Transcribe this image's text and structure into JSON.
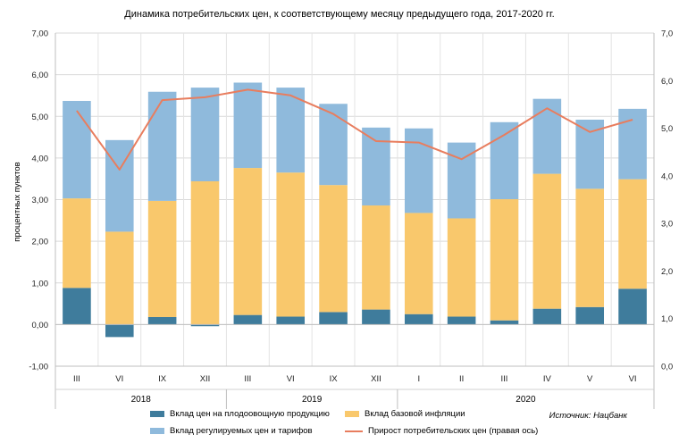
{
  "title": "Динамика потребительских цен, к соответствующему месяцу предыдущего года, 2017-2020 гг.",
  "source": "Источник: Нацбанк",
  "colors": {
    "fruit": "#3f7c9c",
    "core": "#f9c86c",
    "regulated": "#8fbadc",
    "cpi": "#e87d5e"
  },
  "legend": {
    "fruit": "Вклад цен на плодоовощную продукцию",
    "core": "Вклад базовой инфляции",
    "regulated": "Вклад регулируемых цен и тарифов",
    "cpi": "Прирост потребительских цен (правая ось)"
  },
  "chart_data": {
    "type": "bar",
    "stacked": true,
    "categories": [
      "III",
      "VI",
      "IX",
      "XII",
      "III",
      "VI",
      "IX",
      "XII",
      "I",
      "II",
      "III",
      "IV",
      "V",
      "VI"
    ],
    "years": [
      {
        "label": "2018",
        "span": [
          0,
          3
        ]
      },
      {
        "label": "2019",
        "span": [
          4,
          7
        ]
      },
      {
        "label": "2020",
        "span": [
          8,
          13
        ]
      }
    ],
    "ylabel": "процентных пунктов",
    "ylim": [
      -1,
      7
    ],
    "y_ticks": [
      "-1,00",
      "0,00",
      "1,00",
      "2,00",
      "3,00",
      "4,00",
      "5,00",
      "6,00",
      "7,00"
    ],
    "y2lim": [
      0,
      7
    ],
    "y2_ticks": [
      "0,0",
      "1,0",
      "2,0",
      "3,0",
      "4,0",
      "5,0",
      "6,0",
      "7,0"
    ],
    "series": [
      {
        "name": "Вклад цен на плодоовощную продукцию",
        "key": "fruit",
        "values": [
          0.88,
          -0.3,
          0.18,
          -0.04,
          0.23,
          0.19,
          0.3,
          0.36,
          0.25,
          0.19,
          0.1,
          0.38,
          0.42,
          0.86
        ]
      },
      {
        "name": "Вклад базовой инфляции",
        "key": "core",
        "values": [
          2.15,
          2.23,
          2.79,
          3.44,
          3.53,
          3.46,
          3.05,
          2.5,
          2.43,
          2.36,
          2.91,
          3.24,
          2.84,
          2.63
        ]
      },
      {
        "name": "Вклад регулируемых цен и тарифов",
        "key": "regulated",
        "values": [
          2.34,
          2.2,
          2.62,
          2.25,
          2.05,
          2.04,
          1.95,
          1.87,
          2.03,
          1.82,
          1.85,
          1.8,
          1.66,
          1.69
        ]
      },
      {
        "name": "Прирост потребительских цен (правая ось)",
        "key": "cpi",
        "axis": "right",
        "type": "line",
        "values": [
          5.37,
          4.13,
          5.59,
          5.65,
          5.81,
          5.69,
          5.3,
          4.73,
          4.7,
          4.35,
          4.86,
          5.42,
          4.92,
          5.18
        ]
      }
    ]
  }
}
